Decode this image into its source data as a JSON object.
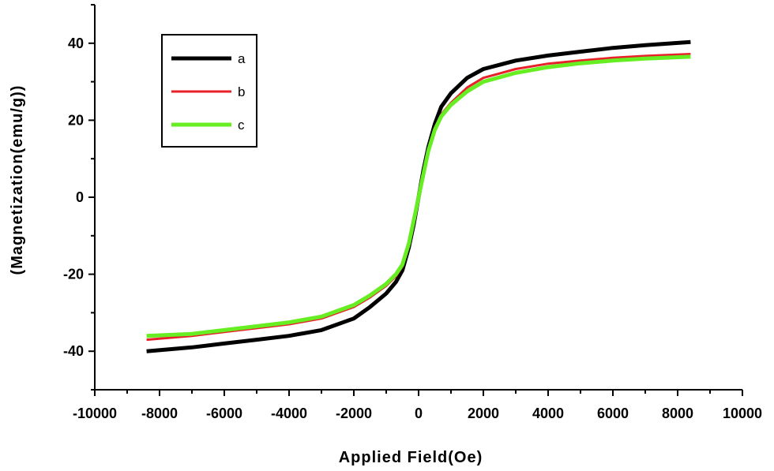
{
  "chart_data": {
    "type": "line",
    "title": "",
    "xlabel": "Applied Field(Oe)",
    "ylabel": "(Magnetization(emu/g))",
    "xlim": [
      -10000,
      10000
    ],
    "ylim": [
      -50,
      50
    ],
    "xticks": [
      -10000,
      -8000,
      -6000,
      -4000,
      -2000,
      0,
      2000,
      4000,
      6000,
      8000,
      10000
    ],
    "yticks": [
      -40,
      -20,
      0,
      20,
      40
    ],
    "grid": false,
    "legend_placement": "top-left",
    "series": [
      {
        "name": "a",
        "color": "#000000",
        "x": [
          -8400,
          -7000,
          -6000,
          -5000,
          -4000,
          -3000,
          -2000,
          -1500,
          -1000,
          -700,
          -500,
          -300,
          -150,
          0,
          150,
          300,
          500,
          700,
          1000,
          1500,
          2000,
          3000,
          4000,
          5000,
          6000,
          7000,
          8400
        ],
        "y": [
          -40,
          -39,
          -38,
          -37,
          -36,
          -34.5,
          -31.5,
          -28.5,
          -25,
          -22,
          -19,
          -13,
          -7,
          0,
          7,
          13,
          19,
          23.5,
          27,
          31,
          33.3,
          35.5,
          36.8,
          37.8,
          38.8,
          39.5,
          40.3
        ]
      },
      {
        "name": "b",
        "color": "#e8202a",
        "x": [
          -8400,
          -7000,
          -6000,
          -5000,
          -4000,
          -3000,
          -2000,
          -1500,
          -1000,
          -700,
          -500,
          -300,
          -150,
          0,
          150,
          300,
          500,
          700,
          1000,
          1500,
          2000,
          3000,
          4000,
          5000,
          6000,
          7000,
          8400
        ],
        "y": [
          -37,
          -36,
          -35,
          -34,
          -33,
          -31.5,
          -28.5,
          -26,
          -23,
          -20.5,
          -18,
          -12.5,
          -6.5,
          0,
          6.5,
          12.5,
          18,
          21.5,
          24.5,
          28.5,
          31,
          33.3,
          34.7,
          35.5,
          36.2,
          36.7,
          37.2
        ]
      },
      {
        "name": "c",
        "color": "#66ee22",
        "x": [
          -8400,
          -7000,
          -6000,
          -5000,
          -4000,
          -3000,
          -2000,
          -1500,
          -1000,
          -700,
          -500,
          -300,
          -150,
          0,
          150,
          300,
          500,
          700,
          1000,
          1500,
          2000,
          3000,
          4000,
          5000,
          6000,
          7000,
          8400
        ],
        "y": [
          -36,
          -35.5,
          -34.5,
          -33.5,
          -32.5,
          -31,
          -28,
          -25.5,
          -22.5,
          -20,
          -17.5,
          -12,
          -6,
          0,
          6,
          12,
          17.5,
          21,
          24,
          27.5,
          30,
          32.3,
          33.8,
          34.8,
          35.5,
          36,
          36.5
        ]
      }
    ]
  }
}
